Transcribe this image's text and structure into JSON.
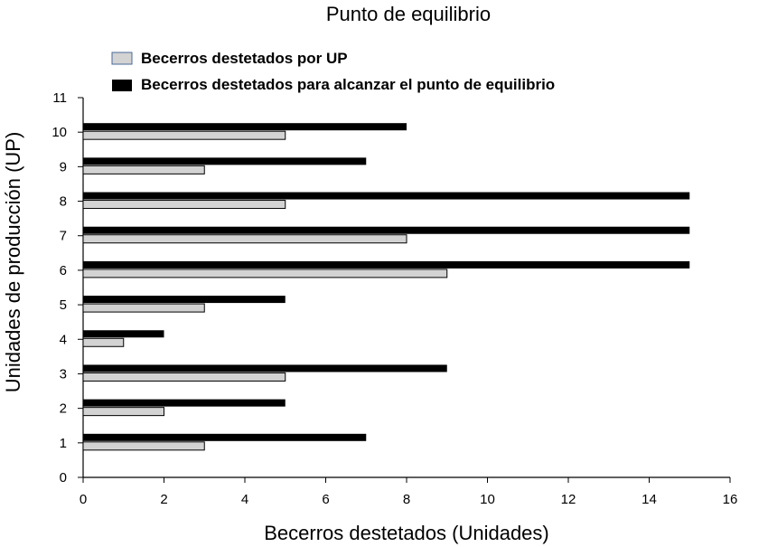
{
  "chart_data": {
    "type": "bar",
    "orientation": "horizontal",
    "title": "Punto de equilibrio",
    "xlabel": "Becerros destetados (Unidades)",
    "ylabel": "Unidades de producción (UP)",
    "xlim": [
      0,
      16
    ],
    "ylim": [
      0,
      11
    ],
    "xticks": [
      "0",
      "2",
      "4",
      "6",
      "8",
      "10",
      "12",
      "14",
      "16"
    ],
    "yticks": [
      "0",
      "1",
      "2",
      "3",
      "4",
      "5",
      "6",
      "7",
      "8",
      "9",
      "10",
      "11"
    ],
    "categories": [
      1,
      2,
      3,
      4,
      5,
      6,
      7,
      8,
      9,
      10
    ],
    "series": [
      {
        "name": "Becerros destetados por UP",
        "color": "#d3d3d3",
        "values": [
          3,
          2,
          5,
          1,
          3,
          9,
          8,
          5,
          3,
          5
        ]
      },
      {
        "name": "Becerros destetados para alcanzar el punto de equilibrio",
        "color": "#000000",
        "values": [
          7,
          5,
          9,
          2,
          5,
          15,
          15,
          15,
          7,
          8
        ]
      }
    ],
    "legend_position": "top-left",
    "grid": false
  }
}
